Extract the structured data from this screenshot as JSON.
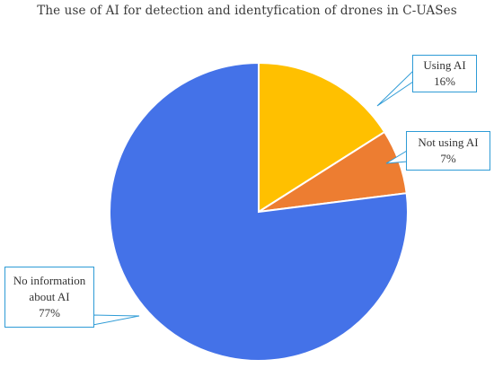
{
  "chart_data": {
    "type": "pie",
    "title": "The use of AI for detection and identyfication of drones in C-UASes",
    "legend": "callouts",
    "start_angle_deg": 0,
    "direction": "clockwise",
    "slices": [
      {
        "label": "Using AI",
        "value": 16,
        "percent_label": "16%",
        "color": "#FFC000"
      },
      {
        "label": "Not using AI",
        "value": 7,
        "percent_label": "7%",
        "color": "#ED7D31"
      },
      {
        "label": "No information about AI",
        "label_lines": [
          "No information",
          "about AI"
        ],
        "value": 77,
        "percent_label": "77%",
        "color": "#4472E8"
      }
    ],
    "callout_border_color": "#2E9BD6"
  }
}
